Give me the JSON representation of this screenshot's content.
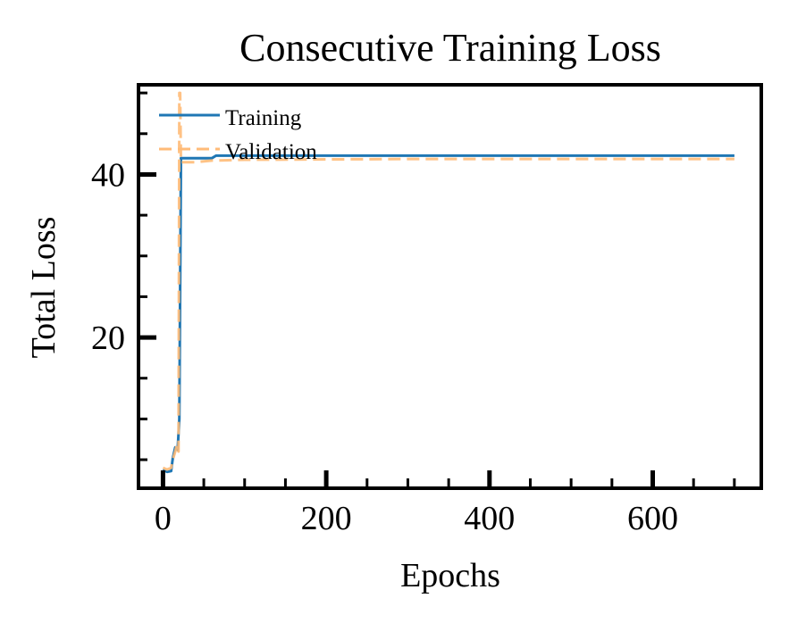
{
  "chart_data": {
    "type": "line",
    "title": "Consecutive Training Loss",
    "xlabel": "Epochs",
    "ylabel": "Total Loss",
    "xlim": [
      -30,
      733
    ],
    "ylim": [
      1.5,
      51
    ],
    "x_ticks": [
      0,
      200,
      400,
      600
    ],
    "x_tick_labels": [
      "0",
      "200",
      "400",
      "600"
    ],
    "x_minor_ticks": [
      50,
      100,
      150,
      250,
      300,
      350,
      450,
      500,
      550,
      650,
      700
    ],
    "y_ticks": [
      20,
      40
    ],
    "y_tick_labels": [
      "20",
      "40"
    ],
    "y_minor_ticks": [
      5,
      10,
      15,
      25,
      30,
      35,
      45,
      50
    ],
    "grid": false,
    "legend_position": "top-left",
    "series": [
      {
        "name": "Training",
        "color": "#1f77b4",
        "style": "solid",
        "points": [
          [
            0,
            3.8
          ],
          [
            5,
            3.5
          ],
          [
            10,
            3.6
          ],
          [
            12,
            5.2
          ],
          [
            15,
            6.5
          ],
          [
            18,
            6.2
          ],
          [
            20,
            10
          ],
          [
            22,
            42.0
          ],
          [
            40,
            42.0
          ],
          [
            60,
            42.0
          ],
          [
            65,
            42.3
          ],
          [
            100,
            42.3
          ],
          [
            200,
            42.3
          ],
          [
            300,
            42.3
          ],
          [
            400,
            42.3
          ],
          [
            500,
            42.3
          ],
          [
            600,
            42.3
          ],
          [
            700,
            42.3
          ]
        ]
      },
      {
        "name": "Validation",
        "color": "#ffbb78",
        "style": "dashed",
        "points": [
          [
            0,
            4.0
          ],
          [
            5,
            3.8
          ],
          [
            10,
            4.0
          ],
          [
            12,
            5.0
          ],
          [
            15,
            6.0
          ],
          [
            17,
            6.8
          ],
          [
            19,
            6.0
          ],
          [
            20,
            50.0
          ],
          [
            21,
            50.0
          ],
          [
            22,
            41.5
          ],
          [
            40,
            41.5
          ],
          [
            60,
            41.7
          ],
          [
            100,
            41.8
          ],
          [
            300,
            41.9
          ],
          [
            500,
            41.9
          ],
          [
            700,
            41.9
          ]
        ]
      }
    ]
  }
}
